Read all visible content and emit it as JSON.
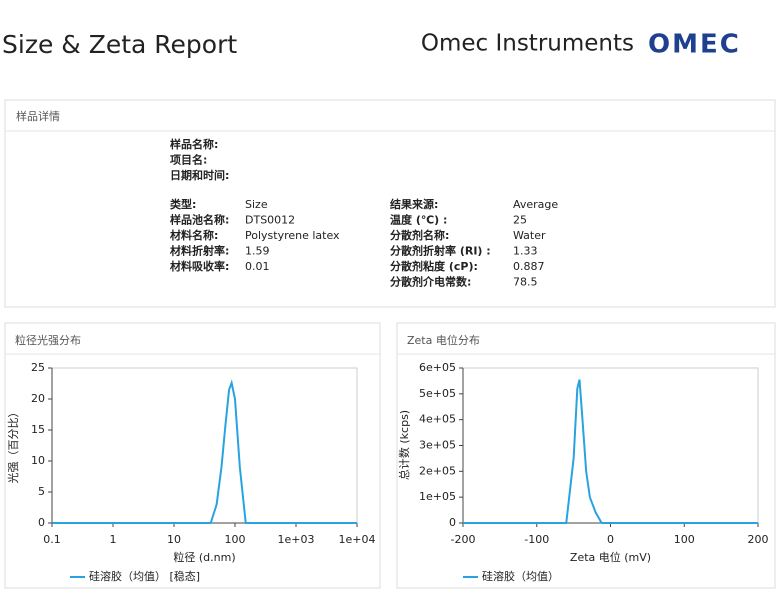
{
  "header": {
    "title": "Size & Zeta Report",
    "company": "Omec Instruments",
    "logo": "OMEC"
  },
  "details": {
    "title": "样品详情",
    "top": [
      "样品名称:",
      "项目名:",
      "日期和时间:"
    ],
    "left": [
      {
        "label": "类型:",
        "value": "Size"
      },
      {
        "label": "样品池名称:",
        "value": "DTS0012"
      },
      {
        "label": "材料名称:",
        "value": "Polystyrene latex"
      },
      {
        "label": "材料折射率:",
        "value": "1.59"
      },
      {
        "label": "材料吸收率:",
        "value": "0.01"
      }
    ],
    "right": [
      {
        "label": "结果来源:",
        "value": "Average"
      },
      {
        "label": "温度 (℃) :",
        "value": "25"
      },
      {
        "label": "分散剂名称:",
        "value": "Water"
      },
      {
        "label": "分散剂折射率 (RI) :",
        "value": "1.33"
      },
      {
        "label": "分散剂粘度 (cP):",
        "value": "0.887"
      },
      {
        "label": "分散剂介电常数:",
        "value": "78.5"
      }
    ]
  },
  "chart_data": [
    {
      "type": "line",
      "title": "粒径光强分布",
      "xlabel": "粒径 (d.nm)",
      "ylabel": "光强（百分比）",
      "x_scale": "log",
      "xlim": [
        0.1,
        10000
      ],
      "xticks": [
        0.1,
        1,
        10,
        100,
        {
          "value": 1000,
          "label": "1e+03"
        },
        {
          "value": 10000,
          "label": "1e+04"
        }
      ],
      "ylim": [
        0,
        25
      ],
      "yticks": [
        0,
        5,
        10,
        15,
        20,
        25
      ],
      "x": [
        0.1,
        40,
        50,
        60,
        70,
        80,
        88,
        100,
        120,
        150,
        10000
      ],
      "series": [
        {
          "name": "硅溶胶（均值） [稳态]",
          "color": "#29a3e0",
          "values": [
            0,
            0,
            3,
            9,
            16,
            21.5,
            22.6,
            20,
            9,
            0,
            0
          ]
        }
      ]
    },
    {
      "type": "line",
      "title": "Zeta 电位分布",
      "xlabel": "Zeta 电位 (mV)",
      "ylabel": "总计数 (kcps)",
      "x_scale": "linear",
      "xlim": [
        -200,
        200
      ],
      "xticks": [
        -200,
        -100,
        0,
        100,
        200
      ],
      "ylim": [
        0,
        600000
      ],
      "yticks": [
        0,
        {
          "value": 100000,
          "label": "1e+05"
        },
        {
          "value": 200000,
          "label": "2e+05"
        },
        {
          "value": 300000,
          "label": "3e+05"
        },
        {
          "value": 400000,
          "label": "4e+05"
        },
        {
          "value": 500000,
          "label": "5e+05"
        },
        {
          "value": 600000,
          "label": "6e+05"
        }
      ],
      "x": [
        -200,
        -60,
        -50,
        -45,
        -42,
        -38,
        -33,
        -28,
        -20,
        -12,
        200
      ],
      "series": [
        {
          "name": "硅溶胶（均值）",
          "color": "#29a3e0",
          "values": [
            0,
            0,
            250000,
            520000,
            555000,
            400000,
            200000,
            100000,
            40000,
            0,
            0
          ]
        }
      ]
    }
  ]
}
